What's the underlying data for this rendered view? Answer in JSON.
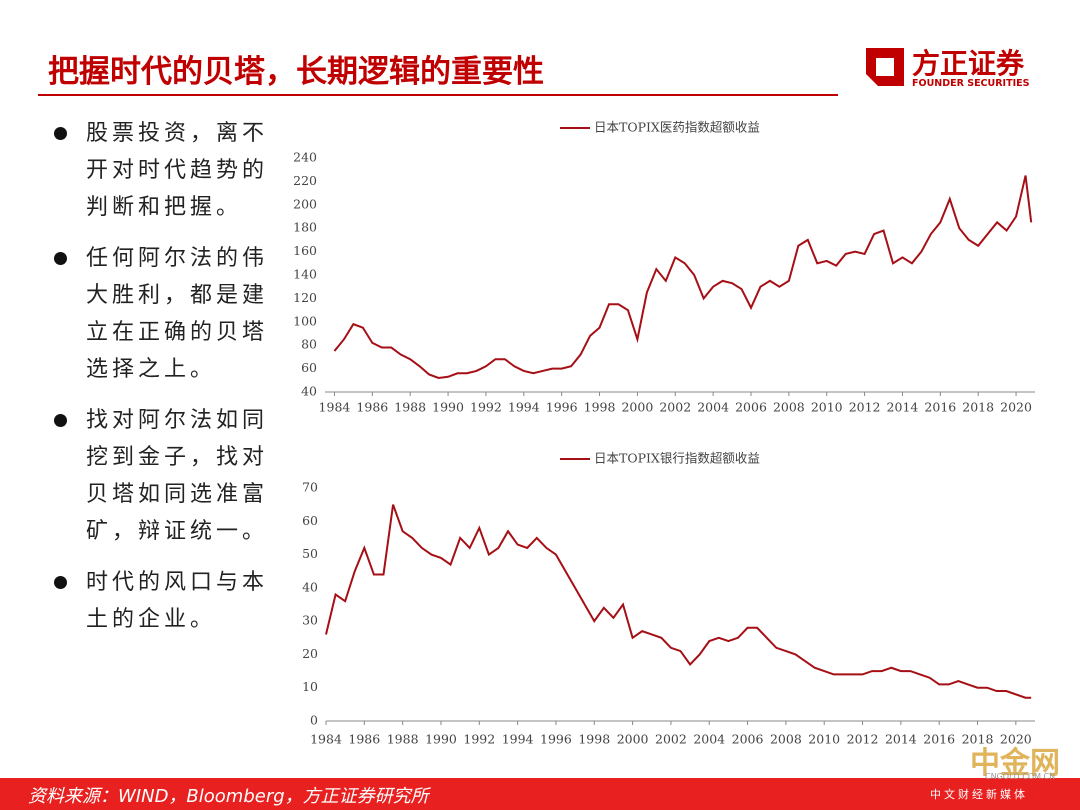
{
  "header": {
    "title": "把握时代的贝塔，长期逻辑的重要性",
    "logo": "方正证券",
    "logo_en": "FOUNDER SECURITIES"
  },
  "bullets": [
    "股票投资，离不开对时代趋势的判断和把握。",
    "任何阿尔法的伟大胜利，都是建立在正确的贝塔选择之上。",
    "找对阿尔法如同挖到金子，找对贝塔如同选准富矿，辩证统一。",
    "时代的风口与本土的企业。"
  ],
  "footer": {
    "source": "资料来源：WIND，Bloomberg，方正证券研究所"
  },
  "watermark": {
    "name": "中金网",
    "url": "CNGOLD.COM.CN",
    "tagline": "中文财经新媒体"
  },
  "chart_data": [
    {
      "type": "line",
      "x": [
        1984,
        1984.5,
        1985,
        1985.5,
        1986,
        1986.5,
        1987,
        1987.5,
        1988,
        1988.5,
        1989,
        1989.5,
        1990,
        1990.5,
        1991,
        1991.5,
        1992,
        1992.5,
        1993,
        1993.5,
        1994,
        1994.5,
        1995,
        1995.5,
        1996,
        1996.5,
        1997,
        1997.5,
        1998,
        1998.5,
        1999,
        1999.5,
        2000,
        2000.5,
        2001,
        2001.5,
        2002,
        2002.5,
        2003,
        2003.5,
        2004,
        2004.5,
        2005,
        2005.5,
        2006,
        2006.5,
        2007,
        2007.5,
        2008,
        2008.5,
        2009,
        2009.5,
        2010,
        2010.5,
        2011,
        2011.5,
        2012,
        2012.5,
        2013,
        2013.5,
        2014,
        2014.5,
        2015,
        2015.5,
        2016,
        2016.5,
        2017,
        2017.5,
        2018,
        2018.5,
        2019,
        2019.5,
        2020,
        2020.5,
        2020.8
      ],
      "series": [
        {
          "name": "日本TOPIX医药指数超额收益",
          "color": "#a50f15",
          "values": [
            75,
            85,
            98,
            95,
            82,
            78,
            78,
            72,
            68,
            62,
            55,
            52,
            53,
            56,
            56,
            58,
            62,
            68,
            68,
            62,
            58,
            56,
            58,
            60,
            60,
            62,
            72,
            88,
            95,
            115,
            115,
            110,
            85,
            125,
            145,
            135,
            155,
            150,
            140,
            120,
            130,
            135,
            133,
            128,
            112,
            130,
            135,
            130,
            135,
            165,
            170,
            150,
            152,
            148,
            158,
            160,
            158,
            175,
            178,
            150,
            155,
            150,
            160,
            175,
            185,
            205,
            180,
            170,
            165,
            175,
            185,
            178,
            190,
            225,
            185
          ]
        }
      ],
      "xlim": [
        1983.5,
        2021
      ],
      "xticks": [
        1984,
        1986,
        1988,
        1990,
        1992,
        1994,
        1996,
        1998,
        2000,
        2002,
        2004,
        2006,
        2008,
        2010,
        2012,
        2014,
        2016,
        2018,
        2020
      ],
      "ylim": [
        40,
        240
      ],
      "yticks": [
        40,
        60,
        80,
        100,
        120,
        140,
        160,
        180,
        200,
        220,
        240
      ]
    },
    {
      "type": "line",
      "x": [
        1984,
        1984.5,
        1985,
        1985.5,
        1986,
        1986.5,
        1987,
        1987.5,
        1988,
        1988.5,
        1989,
        1989.5,
        1990,
        1990.5,
        1991,
        1991.5,
        1992,
        1992.5,
        1993,
        1993.5,
        1994,
        1994.5,
        1995,
        1995.5,
        1996,
        1996.5,
        1997,
        1997.5,
        1998,
        1998.5,
        1999,
        1999.5,
        2000,
        2000.5,
        2001,
        2001.5,
        2002,
        2002.5,
        2003,
        2003.5,
        2004,
        2004.5,
        2005,
        2005.5,
        2006,
        2006.5,
        2007,
        2007.5,
        2008,
        2008.5,
        2009,
        2009.5,
        2010,
        2010.5,
        2011,
        2011.5,
        2012,
        2012.5,
        2013,
        2013.5,
        2014,
        2014.5,
        2015,
        2015.5,
        2016,
        2016.5,
        2017,
        2017.5,
        2018,
        2018.5,
        2019,
        2019.5,
        2020,
        2020.5,
        2020.8
      ],
      "series": [
        {
          "name": "日本TOPIX银行指数超额收益",
          "color": "#a50f15",
          "values": [
            26,
            38,
            36,
            45,
            52,
            44,
            44,
            65,
            57,
            55,
            52,
            50,
            49,
            47,
            55,
            52,
            58,
            50,
            52,
            57,
            53,
            52,
            55,
            52,
            50,
            45,
            40,
            35,
            30,
            34,
            31,
            35,
            25,
            27,
            26,
            25,
            22,
            21,
            17,
            20,
            24,
            25,
            24,
            25,
            28,
            28,
            25,
            22,
            21,
            20,
            18,
            16,
            15,
            14,
            14,
            14,
            14,
            15,
            15,
            16,
            15,
            15,
            14,
            13,
            11,
            11,
            12,
            11,
            10,
            10,
            9,
            9,
            8,
            7,
            7
          ]
        }
      ],
      "xlim": [
        1984,
        2021
      ],
      "xticks": [
        1984,
        1986,
        1988,
        1990,
        1992,
        1994,
        1996,
        1998,
        2000,
        2002,
        2004,
        2006,
        2008,
        2010,
        2012,
        2014,
        2016,
        2018,
        2020
      ],
      "ylim": [
        0,
        70
      ],
      "yticks": [
        0,
        10,
        20,
        30,
        40,
        50,
        60,
        70
      ]
    }
  ]
}
